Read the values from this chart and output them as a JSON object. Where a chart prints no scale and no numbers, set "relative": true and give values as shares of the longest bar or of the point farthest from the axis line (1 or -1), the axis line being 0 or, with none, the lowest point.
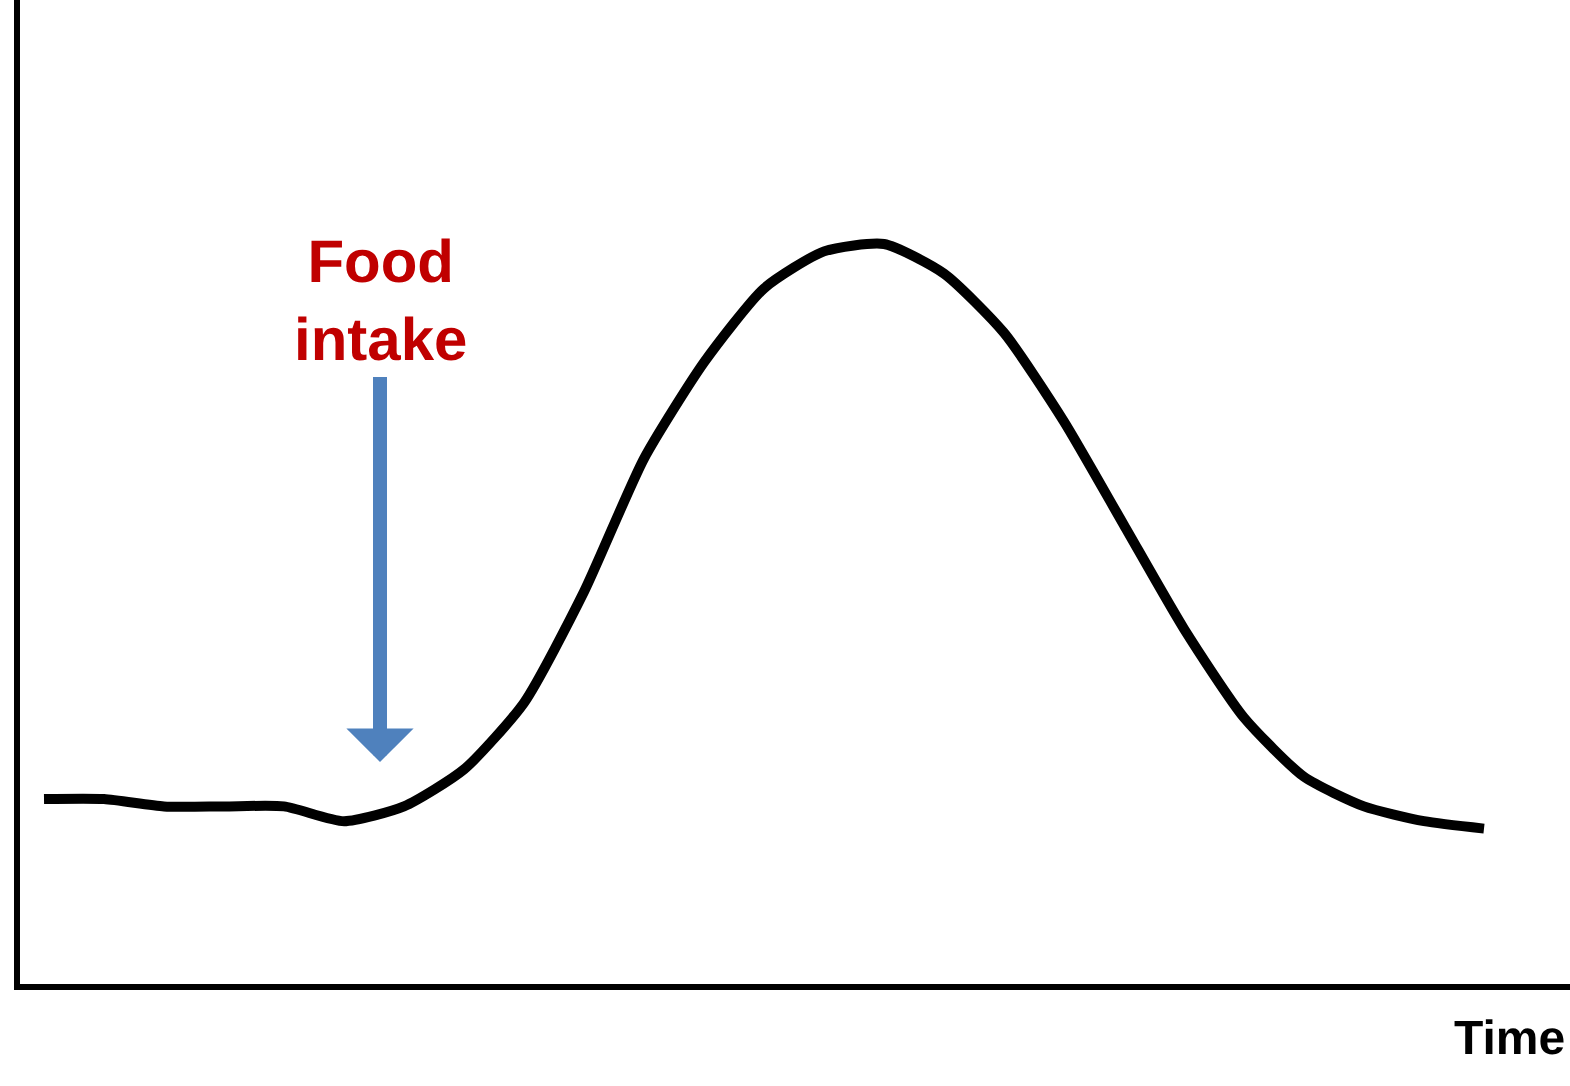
{
  "chart_data": {
    "type": "line",
    "relative": true,
    "xlabel": "Time",
    "annotations": [
      "Food intake"
    ],
    "categories": [
      null,
      null,
      null,
      null,
      null,
      null,
      null,
      null,
      null,
      null,
      null,
      null,
      null,
      null,
      null,
      null,
      null,
      null,
      null,
      null,
      null,
      null,
      null,
      null,
      null
    ],
    "series": [
      {
        "color": "#000000",
        "values": [
          0.25,
          0.25,
          0.24,
          0.24,
          0.24,
          0.22,
          0.24,
          0.29,
          0.38,
          0.53,
          0.71,
          0.84,
          0.94,
          0.99,
          1.0,
          0.96,
          0.88,
          0.76,
          0.62,
          0.48,
          0.36,
          0.28,
          0.24,
          0.22,
          0.21
        ]
      }
    ],
    "marker": "none",
    "line_style": "solid"
  }
}
